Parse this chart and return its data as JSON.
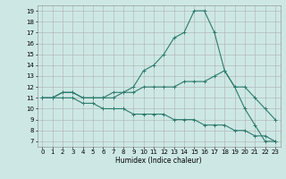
{
  "xlabel": "Humidex (Indice chaleur)",
  "bg_color": "#cde8e4",
  "grid_color": "#b0b0b0",
  "line_color": "#2d7a6e",
  "xlim": [
    -0.5,
    23.5
  ],
  "ylim": [
    6.5,
    19.5
  ],
  "xticks": [
    0,
    1,
    2,
    3,
    4,
    5,
    6,
    7,
    8,
    9,
    10,
    11,
    12,
    13,
    14,
    15,
    16,
    17,
    18,
    19,
    20,
    21,
    22,
    23
  ],
  "yticks": [
    7,
    8,
    9,
    10,
    11,
    12,
    13,
    14,
    15,
    16,
    17,
    18,
    19
  ],
  "line1_x": [
    0,
    1,
    2,
    3,
    4,
    5,
    6,
    7,
    8,
    9,
    10,
    11,
    12,
    13,
    14,
    15,
    16,
    17,
    18,
    19,
    20,
    21,
    22,
    23
  ],
  "line1_y": [
    11,
    11,
    11.5,
    11.5,
    11,
    11,
    11,
    11.5,
    11.5,
    12,
    13.5,
    14,
    15,
    16.5,
    17,
    19,
    19,
    17,
    13.5,
    12,
    10,
    8.5,
    7,
    7
  ],
  "line2_x": [
    0,
    1,
    2,
    3,
    4,
    5,
    6,
    7,
    8,
    9,
    10,
    11,
    12,
    13,
    14,
    15,
    16,
    17,
    18,
    19,
    20,
    21,
    22,
    23
  ],
  "line2_y": [
    11,
    11,
    11.5,
    11.5,
    11,
    11,
    11,
    11,
    11.5,
    11.5,
    12,
    12,
    12,
    12,
    12.5,
    12.5,
    12.5,
    13,
    13.5,
    12,
    12,
    11,
    10,
    9
  ],
  "line3_x": [
    0,
    1,
    2,
    3,
    4,
    5,
    6,
    7,
    8,
    9,
    10,
    11,
    12,
    13,
    14,
    15,
    16,
    17,
    18,
    19,
    20,
    21,
    22,
    23
  ],
  "line3_y": [
    11,
    11,
    11,
    11,
    10.5,
    10.5,
    10,
    10,
    10,
    9.5,
    9.5,
    9.5,
    9.5,
    9,
    9,
    9,
    8.5,
    8.5,
    8.5,
    8,
    8,
    7.5,
    7.5,
    7
  ]
}
